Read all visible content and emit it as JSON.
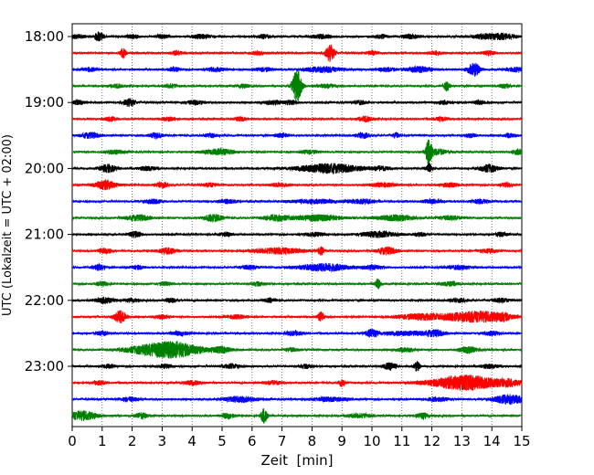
{
  "chart_data": {
    "type": "line",
    "title": "",
    "xlabel": "Zeit  [min]",
    "ylabel": "UTC (Lokalzeit = UTC + 02:00)",
    "xlim": [
      0,
      15
    ],
    "x_ticks": [
      "0",
      "1",
      "2",
      "3",
      "4",
      "5",
      "6",
      "7",
      "8",
      "9",
      "10",
      "11",
      "12",
      "13",
      "14",
      "15"
    ],
    "y_ticks": [
      "18:00",
      "19:00",
      "20:00",
      "21:00",
      "22:00",
      "23:00"
    ],
    "grid_x": true,
    "line_colors": [
      "#000000",
      "#ff0000",
      "#0000ff",
      "#008000"
    ],
    "traces": [
      {
        "start": "18:00",
        "color": "#000000",
        "events": [
          [
            0.1,
            0.35,
            2
          ],
          [
            0.9,
            0.15,
            5
          ],
          [
            2.0,
            0.2,
            2
          ],
          [
            3.0,
            0.2,
            2
          ],
          [
            4.3,
            0.3,
            2
          ],
          [
            6.4,
            0.2,
            2
          ],
          [
            8.3,
            0.3,
            2
          ],
          [
            10.3,
            0.2,
            2
          ],
          [
            11.3,
            0.3,
            2
          ],
          [
            13.9,
            0.5,
            3
          ],
          [
            14.5,
            0.3,
            2
          ]
        ]
      },
      {
        "start": "18:15",
        "color": "#ff0000",
        "events": [
          [
            1.7,
            0.1,
            5
          ],
          [
            3.5,
            0.2,
            2
          ],
          [
            6.2,
            0.2,
            2
          ],
          [
            8.6,
            0.15,
            9
          ],
          [
            10.0,
            0.2,
            2
          ],
          [
            12.1,
            0.2,
            2
          ],
          [
            13.9,
            0.2,
            2
          ]
        ]
      },
      {
        "start": "18:30",
        "color": "#0000ff",
        "events": [
          [
            0.6,
            0.2,
            2
          ],
          [
            3.4,
            0.2,
            2
          ],
          [
            4.8,
            0.3,
            2
          ],
          [
            6.4,
            0.3,
            2
          ],
          [
            8.4,
            0.6,
            3
          ],
          [
            10.5,
            0.3,
            2
          ],
          [
            11.6,
            0.4,
            3
          ],
          [
            13.4,
            0.2,
            7
          ],
          [
            14.8,
            0.3,
            2
          ]
        ]
      },
      {
        "start": "18:45",
        "color": "#008000",
        "events": [
          [
            1.5,
            0.2,
            2
          ],
          [
            3.3,
            0.2,
            2
          ],
          [
            5.7,
            0.2,
            2
          ],
          [
            7.5,
            0.15,
            18
          ],
          [
            8.5,
            0.3,
            2
          ],
          [
            12.5,
            0.1,
            5
          ],
          [
            14.4,
            0.2,
            2
          ]
        ]
      },
      {
        "start": "19:00",
        "color": "#000000",
        "events": [
          [
            0.2,
            0.2,
            2
          ],
          [
            1.9,
            0.2,
            4
          ],
          [
            4.1,
            0.3,
            2
          ],
          [
            6.7,
            0.3,
            2
          ],
          [
            7.3,
            0.2,
            2
          ],
          [
            9.6,
            0.2,
            2
          ],
          [
            12.4,
            0.2,
            2
          ],
          [
            13.6,
            0.2,
            2
          ]
        ]
      },
      {
        "start": "19:15",
        "color": "#ff0000",
        "events": [
          [
            1.3,
            0.2,
            2
          ],
          [
            3.2,
            0.2,
            2
          ],
          [
            5.6,
            0.2,
            2
          ],
          [
            9.8,
            0.2,
            3
          ],
          [
            12.3,
            0.2,
            2
          ]
        ]
      },
      {
        "start": "19:30",
        "color": "#0000ff",
        "events": [
          [
            0.6,
            0.3,
            3
          ],
          [
            2.8,
            0.2,
            3
          ],
          [
            4.6,
            0.2,
            2
          ],
          [
            7.0,
            0.2,
            2
          ],
          [
            9.7,
            0.2,
            3
          ],
          [
            10.8,
            0.1,
            3
          ],
          [
            13.3,
            0.2,
            2
          ],
          [
            14.6,
            0.2,
            2
          ]
        ]
      },
      {
        "start": "19:45",
        "color": "#008000",
        "events": [
          [
            1.4,
            0.3,
            2
          ],
          [
            4.9,
            0.5,
            3
          ],
          [
            7.9,
            0.3,
            2
          ],
          [
            11.9,
            0.1,
            14
          ],
          [
            12.2,
            0.3,
            3
          ],
          [
            14.9,
            0.2,
            3
          ]
        ]
      },
      {
        "start": "20:00",
        "color": "#000000",
        "events": [
          [
            1.2,
            0.25,
            4
          ],
          [
            2.5,
            0.3,
            2
          ],
          [
            8.6,
            1.0,
            5
          ],
          [
            10.3,
            0.3,
            2
          ],
          [
            11.9,
            0.1,
            5
          ],
          [
            13.9,
            0.3,
            4
          ]
        ]
      },
      {
        "start": "20:15",
        "color": "#ff0000",
        "events": [
          [
            1.1,
            0.35,
            5
          ],
          [
            3.0,
            0.2,
            3
          ],
          [
            4.6,
            0.2,
            2
          ],
          [
            6.9,
            0.3,
            2
          ],
          [
            10.4,
            0.4,
            2
          ],
          [
            12.6,
            0.3,
            2
          ],
          [
            14.5,
            0.2,
            2
          ]
        ]
      },
      {
        "start": "20:30",
        "color": "#0000ff",
        "events": [
          [
            2.7,
            0.3,
            2
          ],
          [
            5.2,
            0.3,
            2
          ],
          [
            8.1,
            0.8,
            2
          ],
          [
            9.7,
            0.4,
            2
          ],
          [
            12.0,
            0.3,
            2
          ],
          [
            13.6,
            0.3,
            2
          ]
        ]
      },
      {
        "start": "20:45",
        "color": "#008000",
        "events": [
          [
            2.2,
            0.4,
            3
          ],
          [
            4.7,
            0.3,
            4
          ],
          [
            6.8,
            0.4,
            3
          ],
          [
            8.2,
            0.8,
            3
          ],
          [
            10.8,
            0.6,
            3
          ],
          [
            12.6,
            0.4,
            2
          ]
        ]
      },
      {
        "start": "21:00",
        "color": "#000000",
        "events": [
          [
            2.1,
            0.2,
            3
          ],
          [
            5.1,
            0.2,
            2
          ],
          [
            8.1,
            0.3,
            2
          ],
          [
            10.2,
            0.6,
            3
          ],
          [
            11.6,
            0.2,
            2
          ],
          [
            14.3,
            0.2,
            2
          ]
        ]
      },
      {
        "start": "21:15",
        "color": "#ff0000",
        "events": [
          [
            1.1,
            0.2,
            3
          ],
          [
            3.2,
            0.3,
            3
          ],
          [
            6.9,
            0.8,
            3
          ],
          [
            8.3,
            0.1,
            4
          ],
          [
            10.5,
            0.3,
            4
          ],
          [
            13.9,
            0.3,
            2
          ]
        ]
      },
      {
        "start": "21:30",
        "color": "#0000ff",
        "events": [
          [
            0.9,
            0.2,
            3
          ],
          [
            2.2,
            0.2,
            2
          ],
          [
            5.9,
            0.3,
            2
          ],
          [
            8.4,
            0.8,
            4
          ],
          [
            10.0,
            0.3,
            2
          ],
          [
            12.9,
            0.4,
            2
          ]
        ]
      },
      {
        "start": "21:45",
        "color": "#008000",
        "events": [
          [
            1.0,
            0.2,
            2
          ],
          [
            3.1,
            0.2,
            2
          ],
          [
            6.2,
            0.2,
            2
          ],
          [
            10.2,
            0.1,
            5
          ],
          [
            12.6,
            0.3,
            2
          ]
        ]
      },
      {
        "start": "22:00",
        "color": "#000000",
        "events": [
          [
            1.1,
            0.3,
            3
          ],
          [
            2.0,
            0.2,
            2
          ],
          [
            3.3,
            0.2,
            2
          ],
          [
            6.6,
            0.2,
            2
          ],
          [
            12.9,
            0.3,
            2
          ],
          [
            14.3,
            0.3,
            2
          ]
        ]
      },
      {
        "start": "22:15",
        "color": "#ff0000",
        "events": [
          [
            1.6,
            0.2,
            7
          ],
          [
            3.0,
            0.2,
            2
          ],
          [
            5.5,
            0.3,
            2
          ],
          [
            8.3,
            0.1,
            5
          ],
          [
            11.6,
            0.8,
            3
          ],
          [
            13.5,
            1.0,
            6
          ],
          [
            14.4,
            0.2,
            2
          ]
        ]
      },
      {
        "start": "22:30",
        "color": "#0000ff",
        "events": [
          [
            1.0,
            0.2,
            2
          ],
          [
            3.6,
            0.3,
            2
          ],
          [
            7.4,
            0.3,
            2
          ],
          [
            10.0,
            0.2,
            4
          ],
          [
            11.2,
            0.8,
            2
          ],
          [
            12.1,
            0.3,
            3
          ],
          [
            14.0,
            0.3,
            2
          ]
        ]
      },
      {
        "start": "22:45",
        "color": "#008000",
        "events": [
          [
            2.4,
            0.8,
            3
          ],
          [
            3.4,
            0.9,
            8
          ],
          [
            5.0,
            0.3,
            3
          ],
          [
            7.3,
            0.2,
            2
          ],
          [
            11.1,
            0.3,
            2
          ],
          [
            13.2,
            0.3,
            3
          ]
        ]
      },
      {
        "start": "23:00",
        "color": "#000000",
        "events": [
          [
            1.2,
            0.2,
            2
          ],
          [
            3.1,
            0.2,
            2
          ],
          [
            5.3,
            0.3,
            2
          ],
          [
            7.8,
            0.2,
            2
          ],
          [
            10.6,
            0.2,
            4
          ],
          [
            11.5,
            0.1,
            5
          ],
          [
            13.9,
            0.3,
            2
          ]
        ]
      },
      {
        "start": "23:15",
        "color": "#ff0000",
        "events": [
          [
            0.9,
            0.2,
            2
          ],
          [
            4.0,
            0.3,
            2
          ],
          [
            6.7,
            0.3,
            2
          ],
          [
            9.0,
            0.1,
            4
          ],
          [
            13.1,
            1.1,
            8
          ],
          [
            14.6,
            0.4,
            3
          ]
        ]
      },
      {
        "start": "23:30",
        "color": "#0000ff",
        "events": [
          [
            1.9,
            0.3,
            2
          ],
          [
            5.6,
            0.5,
            3
          ],
          [
            8.6,
            0.6,
            2
          ],
          [
            12.2,
            0.4,
            2
          ],
          [
            14.6,
            0.5,
            5
          ]
        ]
      },
      {
        "start": "23:45",
        "color": "#008000",
        "events": [
          [
            0.3,
            0.5,
            5
          ],
          [
            2.3,
            0.2,
            3
          ],
          [
            5.2,
            0.2,
            3
          ],
          [
            6.4,
            0.1,
            8
          ],
          [
            9.6,
            0.4,
            2
          ],
          [
            11.7,
            0.2,
            3
          ]
        ]
      }
    ]
  }
}
